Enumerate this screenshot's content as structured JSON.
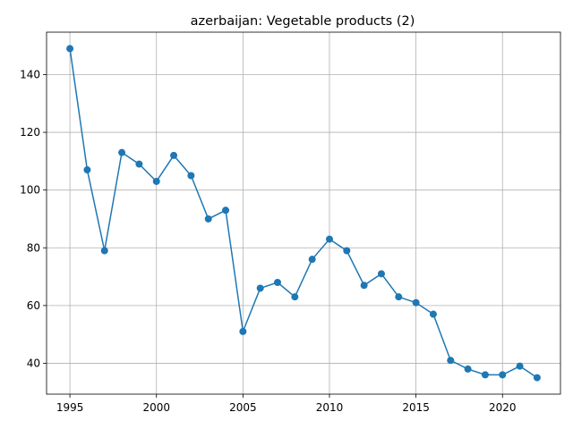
{
  "chart_data": {
    "type": "line",
    "title": "azerbaijan: Vegetable products (2)",
    "xlabel": "",
    "ylabel": "",
    "xlim": [
      1993.65,
      2023.35
    ],
    "ylim": [
      29.3,
      154.7
    ],
    "xticks": [
      1995,
      2000,
      2005,
      2010,
      2015,
      2020
    ],
    "yticks": [
      40,
      60,
      80,
      100,
      120,
      140
    ],
    "grid": true,
    "color": "#1f77b4",
    "x": [
      1995,
      1996,
      1997,
      1998,
      1999,
      2000,
      2001,
      2002,
      2003,
      2004,
      2005,
      2006,
      2007,
      2008,
      2009,
      2010,
      2011,
      2012,
      2013,
      2014,
      2015,
      2016,
      2017,
      2018,
      2019,
      2020,
      2021,
      2022
    ],
    "series": [
      {
        "values": [
          149,
          107,
          79,
          113,
          109,
          103,
          112,
          105,
          90,
          93,
          51,
          66,
          68,
          63,
          76,
          83,
          79,
          67,
          71,
          63,
          61,
          57,
          41,
          38,
          36,
          36,
          39,
          35
        ]
      }
    ]
  }
}
